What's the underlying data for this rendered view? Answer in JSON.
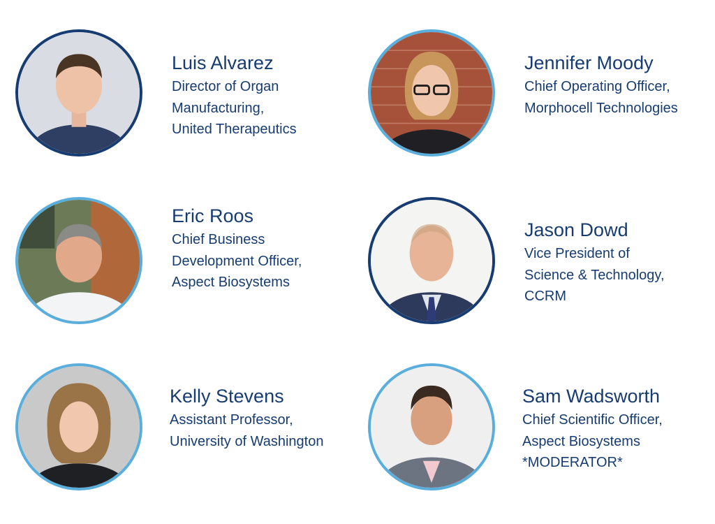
{
  "colors": {
    "text": "#173c72",
    "ring_dark": "#173c72",
    "ring_light": "#5aaedc"
  },
  "speakers": [
    {
      "name": "Luis Alvarez",
      "role_lines": [
        "Director of Organ",
        "Manufacturing,",
        "United Therapeutics"
      ],
      "photo_icon": "portrait-photo",
      "ring": "dark"
    },
    {
      "name": "Jennifer Moody",
      "role_lines": [
        "Chief Operating Officer,",
        "Morphocell Technologies"
      ],
      "photo_icon": "portrait-photo",
      "ring": "light"
    },
    {
      "name": "Eric Roos",
      "role_lines": [
        "Chief Business",
        "Development Officer,",
        "Aspect Biosystems"
      ],
      "photo_icon": "portrait-photo",
      "ring": "light"
    },
    {
      "name": "Jason Dowd",
      "role_lines": [
        "Vice President of",
        "Science & Technology,",
        "CCRM"
      ],
      "photo_icon": "portrait-photo",
      "ring": "dark"
    },
    {
      "name": "Kelly Stevens",
      "role_lines": [
        "Assistant Professor,",
        "University of Washington"
      ],
      "photo_icon": "portrait-photo",
      "ring": "light"
    },
    {
      "name": "Sam Wadsworth",
      "role_lines": [
        "Chief Scientific Officer,",
        "Aspect Biosystems",
        "*MODERATOR*"
      ],
      "photo_icon": "portrait-photo",
      "ring": "light"
    }
  ]
}
